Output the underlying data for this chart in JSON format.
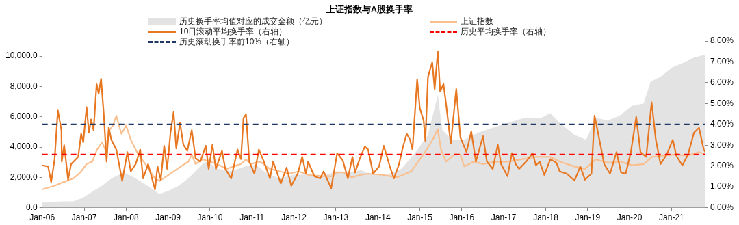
{
  "chart_data": {
    "type": "line",
    "title": "上证指数与A股换手率",
    "legend": "top",
    "grid": false,
    "marker": "none",
    "line_style": "solid",
    "xlim": [
      "2006-01-01",
      "2021-10-23"
    ],
    "xticks": [
      {
        "value": "2006-01",
        "label": "Jan-06"
      },
      {
        "value": "2007-01",
        "label": "Jan-07"
      },
      {
        "value": "2008-01",
        "label": "Jan-08"
      },
      {
        "value": "2009-01",
        "label": "Jan-09"
      },
      {
        "value": "2010-01",
        "label": "Jan-10"
      },
      {
        "value": "2011-01",
        "label": "Jan-11"
      },
      {
        "value": "2012-01",
        "label": "Jan-12"
      },
      {
        "value": "2013-01",
        "label": "Jan-13"
      },
      {
        "value": "2014-01",
        "label": "Jan-14"
      },
      {
        "value": "2015-01",
        "label": "Jan-15"
      },
      {
        "value": "2016-01",
        "label": "Jan-16"
      },
      {
        "value": "2017-01",
        "label": "Jan-17"
      },
      {
        "value": "2018-01",
        "label": "Jan-18"
      },
      {
        "value": "2019-01",
        "label": "Jan-19"
      },
      {
        "value": "2020-01",
        "label": "Jan-20"
      },
      {
        "value": "2021-01",
        "label": "Jan-21"
      }
    ],
    "ylim": [
      0,
      11000
    ],
    "yticks": [
      {
        "value": 0,
        "label": "0.0"
      },
      {
        "value": 2000,
        "label": "2,000.0"
      },
      {
        "value": 4000,
        "label": "4,000.0"
      },
      {
        "value": 6000,
        "label": "6,000.0"
      },
      {
        "value": 8000,
        "label": "8,000.0"
      },
      {
        "value": 10000,
        "label": "10,000.0"
      }
    ],
    "y2lim": [
      0,
      8
    ],
    "y2ticks": [
      {
        "value": 0,
        "label": "0.00%"
      },
      {
        "value": 1,
        "label": "1.00%"
      },
      {
        "value": 2,
        "label": "2.00%"
      },
      {
        "value": 3,
        "label": "3.00%"
      },
      {
        "value": 4,
        "label": "4.00%"
      },
      {
        "value": 5,
        "label": "5.00%"
      },
      {
        "value": 6,
        "label": "6.00%"
      },
      {
        "value": 7,
        "label": "7.00%"
      },
      {
        "value": 8,
        "label": "8.00%"
      }
    ],
    "series": [
      {
        "name": "历史换手率均值对应的成交金额（亿元）",
        "type": "area",
        "color": "#e3e3e3",
        "x": [
          "2006-01-01",
          "2006-07-04",
          "2006-09-27",
          "2006-12-20",
          "2007-03-13",
          "2007-06-06",
          "2007-08-28",
          "2007-10-29",
          "2008-01-01",
          "2008-03-24",
          "2008-07-04",
          "2008-10-19",
          "2009-01-12",
          "2009-04-05",
          "2009-06-27",
          "2009-08-28",
          "2009-10-29",
          "2009-12-09",
          "2010-03-02",
          "2010-07-04",
          "2010-11-10",
          "2011-02-03",
          "2011-05-14",
          "2011-08-28",
          "2012-01-01",
          "2012-05-03",
          "2012-09-09",
          "2013-01-12",
          "2013-05-14",
          "2013-08-07",
          "2013-10-08",
          "2014-03-24",
          "2014-07-26",
          "2014-11-28",
          "2015-03-13",
          "2015-06-06",
          "2015-07-15",
          "2015-10-08",
          "2016-01-22",
          "2016-05-25",
          "2016-09-27",
          "2017-02-03",
          "2017-06-27",
          "2017-11-21",
          "2018-02-11",
          "2018-05-03",
          "2018-09-09",
          "2018-12-20",
          "2019-03-13",
          "2019-06-27",
          "2019-10-08",
          "2020-01-22",
          "2020-05-03",
          "2020-07-04",
          "2020-09-27",
          "2021-01-12",
          "2021-04-22",
          "2021-07-15",
          "2021-10-08",
          "2021-10-23"
        ],
        "values": [
          320,
          400,
          400,
          640,
          1040,
          1440,
          1920,
          2160,
          2240,
          1920,
          1440,
          880,
          1120,
          1440,
          1920,
          2400,
          2880,
          3040,
          2560,
          2400,
          2720,
          2800,
          2240,
          1920,
          2160,
          2160,
          2080,
          2400,
          2320,
          2480,
          2240,
          2160,
          2560,
          3670,
          4790,
          7350,
          5110,
          4470,
          4470,
          4950,
          5270,
          5590,
          5910,
          5910,
          6230,
          5590,
          4790,
          4470,
          5910,
          5750,
          6070,
          6710,
          6870,
          8310,
          8630,
          9270,
          9580,
          9900,
          10060,
          9980
        ]
      },
      {
        "name": "上证指数",
        "color": "#f9bf8f",
        "x": [
          "2006-01-01",
          "2006-04-15",
          "2006-07-04",
          "2006-09-27",
          "2006-11-28",
          "2007-01-22",
          "2007-03-13",
          "2007-04-22",
          "2007-06-06",
          "2007-07-04",
          "2007-08-07",
          "2007-09-09",
          "2007-10-08",
          "2007-11-21",
          "2008-01-01",
          "2008-02-11",
          "2008-04-15",
          "2008-06-17",
          "2008-09-09",
          "2008-10-19",
          "2008-12-20",
          "2009-02-21",
          "2009-04-22",
          "2009-06-27",
          "2009-07-26",
          "2009-08-28",
          "2009-10-29",
          "2010-01-01",
          "2010-03-02",
          "2010-05-25",
          "2010-07-26",
          "2010-09-27",
          "2010-11-10",
          "2010-12-20",
          "2011-03-13",
          "2011-06-06",
          "2011-08-28",
          "2011-11-21",
          "2012-02-11",
          "2012-05-03",
          "2012-09-09",
          "2012-11-28",
          "2013-01-12",
          "2013-03-13",
          "2013-05-14",
          "2013-08-07",
          "2013-10-08",
          "2014-02-11",
          "2014-06-17",
          "2014-10-19",
          "2015-01-01",
          "2015-03-02",
          "2015-05-03",
          "2015-06-06",
          "2015-07-04",
          "2015-08-17",
          "2015-10-29",
          "2015-12-20",
          "2016-01-22",
          "2016-04-15",
          "2016-07-04",
          "2016-10-19",
          "2017-02-03",
          "2017-06-06",
          "2017-10-08",
          "2018-02-11",
          "2018-05-03",
          "2018-09-09",
          "2018-12-09",
          "2019-03-13",
          "2019-06-27",
          "2019-10-08",
          "2020-01-22",
          "2020-05-03",
          "2020-07-15",
          "2020-10-19",
          "2021-02-03",
          "2021-05-14",
          "2021-08-28",
          "2021-10-23"
        ],
        "values": [
          1200,
          1440,
          1680,
          1920,
          2320,
          2880,
          3040,
          3830,
          4310,
          3830,
          5110,
          5430,
          6070,
          4870,
          5430,
          4470,
          3510,
          2880,
          1920,
          1760,
          2080,
          2400,
          2720,
          3040,
          3510,
          2880,
          3190,
          3040,
          2880,
          2560,
          2720,
          2880,
          3190,
          2880,
          3040,
          2560,
          2400,
          2240,
          2400,
          2160,
          2080,
          2080,
          2320,
          2320,
          2000,
          2160,
          2240,
          2160,
          2000,
          2400,
          3190,
          3830,
          4630,
          5190,
          3830,
          3040,
          3510,
          3510,
          2720,
          3040,
          2880,
          3040,
          3040,
          3190,
          3350,
          3350,
          3040,
          2720,
          2560,
          3190,
          2960,
          3040,
          2800,
          2880,
          3350,
          3430,
          3510,
          3430,
          3670,
          3510
        ]
      },
      {
        "name": "10日滚动平均换手率（右轴）",
        "color": "#e87722",
        "axis": "y2",
        "x": [
          "2006-01-01",
          "2006-02-21",
          "2006-03-20",
          "2006-04-19",
          "2006-05-17",
          "2006-06-17",
          "2006-06-20",
          "2006-07-11",
          "2006-08-14",
          "2006-09-09",
          "2006-11-10",
          "2006-12-06",
          "2006-12-24",
          "2007-01-22",
          "2007-02-11",
          "2007-03-02",
          "2007-03-24",
          "2007-04-19",
          "2007-05-07",
          "2007-05-28",
          "2007-06-20",
          "2007-07-15",
          "2007-08-03",
          "2007-08-25",
          "2007-10-08",
          "2007-11-28",
          "2008-01-12",
          "2008-02-11",
          "2008-03-24",
          "2008-05-03",
          "2008-05-28",
          "2008-07-11",
          "2008-09-09",
          "2008-10-01",
          "2008-10-29",
          "2008-11-28",
          "2008-12-24",
          "2009-01-22",
          "2009-02-18",
          "2009-03-13",
          "2009-04-15",
          "2009-05-14",
          "2009-06-17",
          "2009-07-26",
          "2009-08-28",
          "2009-10-08",
          "2009-11-25",
          "2009-12-20",
          "2010-01-22",
          "2010-02-21",
          "2010-04-15",
          "2010-05-14",
          "2010-07-04",
          "2010-08-28",
          "2010-09-27",
          "2010-10-19",
          "2010-11-10",
          "2010-12-09",
          "2011-01-22",
          "2011-03-02",
          "2011-04-15",
          "2011-06-06",
          "2011-07-04",
          "2011-09-09",
          "2011-10-29",
          "2011-12-09",
          "2012-02-03",
          "2012-03-13",
          "2012-04-15",
          "2012-05-03",
          "2012-06-27",
          "2012-08-17",
          "2012-09-16",
          "2012-11-21",
          "2013-01-12",
          "2013-03-02",
          "2013-04-15",
          "2013-05-25",
          "2013-06-17",
          "2013-07-26",
          "2013-09-09",
          "2013-10-08",
          "2013-11-21",
          "2014-01-12",
          "2014-02-21",
          "2014-04-15",
          "2014-05-21",
          "2014-07-04",
          "2014-08-07",
          "2014-09-09",
          "2014-10-08",
          "2014-10-29",
          "2014-12-09",
          "2015-01-01",
          "2015-02-03",
          "2015-02-18",
          "2015-03-13",
          "2015-04-19",
          "2015-05-10",
          "2015-06-06",
          "2015-06-27",
          "2015-07-26",
          "2015-08-17",
          "2015-09-27",
          "2015-11-14",
          "2015-12-20",
          "2016-02-11",
          "2016-03-24",
          "2016-05-03",
          "2016-07-04",
          "2016-08-07",
          "2016-09-27",
          "2016-11-10",
          "2016-12-09",
          "2017-02-03",
          "2017-03-13",
          "2017-04-15",
          "2017-05-14",
          "2017-07-15",
          "2017-09-09",
          "2017-10-08",
          "2017-11-10",
          "2017-12-20",
          "2018-02-11",
          "2018-04-05",
          "2018-05-03",
          "2018-07-04",
          "2018-09-09",
          "2018-10-29",
          "2018-12-09",
          "2019-02-03",
          "2019-03-02",
          "2019-04-05",
          "2019-05-25",
          "2019-07-15",
          "2019-09-09",
          "2019-10-19",
          "2019-11-28",
          "2020-01-12",
          "2020-02-28",
          "2020-04-05",
          "2020-05-25",
          "2020-07-11",
          "2020-08-17",
          "2020-09-27",
          "2020-11-21",
          "2021-01-12",
          "2021-02-11",
          "2021-04-05",
          "2021-05-25",
          "2021-07-15",
          "2021-08-28",
          "2021-10-08",
          "2021-10-23"
        ],
        "values": [
          2.03,
          1.98,
          1.22,
          2.33,
          4.67,
          3.72,
          2.21,
          3.0,
          1.34,
          2.09,
          2.44,
          3.55,
          3.14,
          4.83,
          3.6,
          4.24,
          3.72,
          5.93,
          5.47,
          6.19,
          4.53,
          2.21,
          3.84,
          3.26,
          2.79,
          1.28,
          2.67,
          1.74,
          2.09,
          2.79,
          1.4,
          2.09,
          0.87,
          1.98,
          1.34,
          2.97,
          1.86,
          3.6,
          4.59,
          2.85,
          4.07,
          3.02,
          2.73,
          3.72,
          2.38,
          2.21,
          2.97,
          1.86,
          3.02,
          1.86,
          2.73,
          1.86,
          1.4,
          2.79,
          2.33,
          4.3,
          4.48,
          2.21,
          1.63,
          2.79,
          2.21,
          1.4,
          2.21,
          1.16,
          1.92,
          1.05,
          1.63,
          2.44,
          1.63,
          2.21,
          1.51,
          1.4,
          1.74,
          0.93,
          2.62,
          2.27,
          1.4,
          2.44,
          1.69,
          2.33,
          2.93,
          2.79,
          1.63,
          1.98,
          2.97,
          1.98,
          1.4,
          2.09,
          2.91,
          3.55,
          3.26,
          2.79,
          6.16,
          4.77,
          4.19,
          3.2,
          6.28,
          6.98,
          5.7,
          7.5,
          5.58,
          5.93,
          5.0,
          3.08,
          5.7,
          3.37,
          2.67,
          3.66,
          2.21,
          3.43,
          2.21,
          1.86,
          3.02,
          2.09,
          1.51,
          2.62,
          2.09,
          1.86,
          2.21,
          2.62,
          2.03,
          2.21,
          1.57,
          2.33,
          2.15,
          1.74,
          1.63,
          1.3,
          1.98,
          1.34,
          1.63,
          4.42,
          3.49,
          2.09,
          1.63,
          2.67,
          1.69,
          1.63,
          2.67,
          4.36,
          2.67,
          2.44,
          5.06,
          3.26,
          2.09,
          2.56,
          3.26,
          2.5,
          2.03,
          2.56,
          3.6,
          3.84,
          2.79,
          2.67
        ]
      }
    ],
    "ref_lines": [
      {
        "axis": "y2",
        "value": 2.55,
        "label": "历史平均换手率（右轴）",
        "color": "#ff0000",
        "line_style": "dashed"
      },
      {
        "axis": "y2",
        "value": 4.0,
        "label": "历史滚动换手率前10%（右轴）",
        "color": "#1f3864",
        "line_style": "dashed"
      }
    ]
  }
}
